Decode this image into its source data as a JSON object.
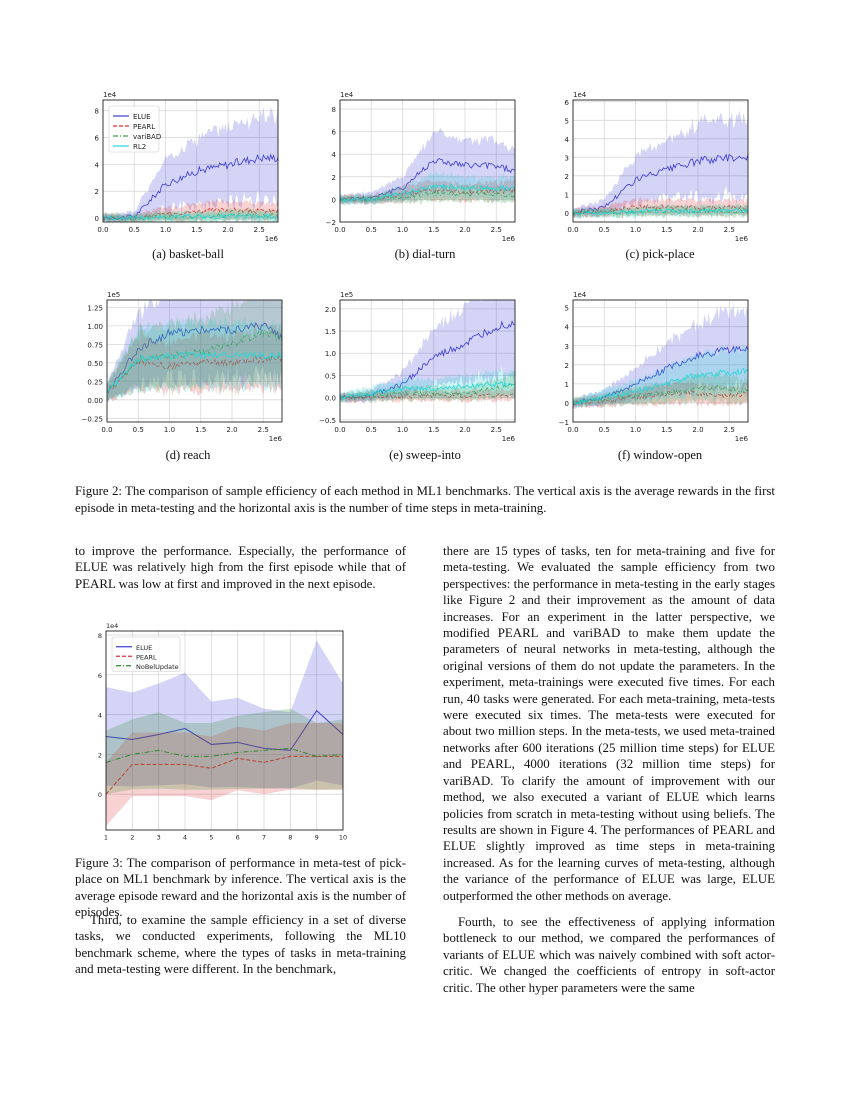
{
  "figure2": {
    "subplots": [
      {
        "id": "a",
        "caption": "(a) basket-ball",
        "scale_label": "1e4",
        "x_label": "1e6",
        "yticks": [
          "0",
          "2",
          "4",
          "6",
          "8"
        ],
        "xticks": [
          "0.0",
          "0.5",
          "1.0",
          "1.5",
          "2.0",
          "2.5"
        ],
        "legend": [
          "ELUE",
          "PEARL",
          "variBAD",
          "RL2"
        ]
      },
      {
        "id": "b",
        "caption": "(b) dial-turn",
        "scale_label": "1e4",
        "x_label": "1e6",
        "yticks": [
          "−2",
          "0",
          "2",
          "4",
          "6",
          "8"
        ],
        "xticks": [
          "0.0",
          "0.5",
          "1.0",
          "1.5",
          "2.0",
          "2.5"
        ]
      },
      {
        "id": "c",
        "caption": "(c) pick-place",
        "scale_label": "1e4",
        "x_label": "1e6",
        "yticks": [
          "0",
          "1",
          "2",
          "3",
          "4",
          "5",
          "6"
        ],
        "xticks": [
          "0.0",
          "0.5",
          "1.0",
          "1.5",
          "2.0",
          "2.5"
        ]
      },
      {
        "id": "d",
        "caption": "(d) reach",
        "scale_label": "1e5",
        "x_label": "1e6",
        "yticks": [
          "−0.25",
          "0.00",
          "0.25",
          "0.50",
          "0.75",
          "1.00",
          "1.25"
        ],
        "xticks": [
          "0.0",
          "0.5",
          "1.0",
          "1.5",
          "2.0",
          "2.5"
        ]
      },
      {
        "id": "e",
        "caption": "(e) sweep-into",
        "scale_label": "1e5",
        "x_label": "1e6",
        "yticks": [
          "−0.5",
          "0.0",
          "0.5",
          "1.0",
          "1.5",
          "2.0"
        ],
        "xticks": [
          "0.0",
          "0.5",
          "1.0",
          "1.5",
          "2.0",
          "2.5"
        ]
      },
      {
        "id": "f",
        "caption": "(f) window-open",
        "scale_label": "1e4",
        "x_label": "1e6",
        "yticks": [
          "−1",
          "0",
          "1",
          "2",
          "3",
          "4",
          "5"
        ],
        "xticks": [
          "0.0",
          "0.5",
          "1.0",
          "1.5",
          "2.0",
          "2.5"
        ]
      }
    ],
    "caption": "Figure 2: The comparison of sample efficiency of each method in ML1 benchmarks. The vertical axis is the average rewards in the first episode in meta-testing and the horizontal axis is the number of time steps in meta-training."
  },
  "chart_data": [
    {
      "type": "line",
      "x": [
        0,
        0.5,
        1.0,
        1.5,
        2.0,
        2.5,
        2.8
      ],
      "xlim": [
        0,
        2.8
      ],
      "ylim": [
        -0.3,
        8.8
      ],
      "series": [
        {
          "name": "ELUE",
          "values": [
            0,
            0.1,
            2.5,
            3.5,
            4.0,
            4.5,
            4.5
          ]
        },
        {
          "name": "PEARL",
          "values": [
            0,
            0,
            0.3,
            0.5,
            0.6,
            0.5,
            0.5
          ]
        },
        {
          "name": "variBAD",
          "values": [
            0,
            0,
            0.1,
            0.1,
            0.2,
            0.2,
            0.2
          ]
        },
        {
          "name": "RL2",
          "values": [
            0,
            0,
            0.05,
            0.1,
            0.1,
            0.1,
            0.1
          ]
        }
      ]
    },
    {
      "type": "line",
      "x": [
        0,
        0.5,
        1.0,
        1.5,
        2.0,
        2.5,
        2.8
      ],
      "xlim": [
        0,
        2.8
      ],
      "ylim": [
        -2,
        8.8
      ],
      "series": [
        {
          "name": "ELUE",
          "values": [
            0,
            0.2,
            1.0,
            3.5,
            3.0,
            3.0,
            2.5
          ]
        },
        {
          "name": "PEARL",
          "values": [
            0,
            0,
            0.5,
            0.8,
            0.6,
            0.7,
            0.8
          ]
        },
        {
          "name": "variBAD",
          "values": [
            0,
            0,
            0.2,
            0.5,
            0.5,
            0.5,
            0.3
          ]
        },
        {
          "name": "RL2",
          "values": [
            0,
            0,
            0.5,
            1.2,
            1.0,
            1.0,
            1.0
          ]
        }
      ]
    },
    {
      "type": "line",
      "x": [
        0,
        0.5,
        1.0,
        1.5,
        2.0,
        2.5,
        2.8
      ],
      "xlim": [
        0,
        2.8
      ],
      "ylim": [
        -0.5,
        6.1
      ],
      "series": [
        {
          "name": "ELUE",
          "values": [
            0,
            0.3,
            1.8,
            2.3,
            2.8,
            3.0,
            3.0
          ]
        },
        {
          "name": "PEARL",
          "values": [
            0,
            0.1,
            0.3,
            0.3,
            0.3,
            0.3,
            0.3
          ]
        },
        {
          "name": "variBAD",
          "values": [
            0,
            0,
            0.05,
            0.1,
            0.1,
            0.1,
            0.1
          ]
        },
        {
          "name": "RL2",
          "values": [
            0,
            0,
            0.05,
            0.1,
            0.1,
            0.1,
            0.1
          ]
        }
      ]
    },
    {
      "type": "line",
      "x": [
        0,
        0.5,
        1.0,
        1.5,
        2.0,
        2.5,
        2.8
      ],
      "xlim": [
        0,
        2.8
      ],
      "ylim": [
        -0.3,
        1.35
      ],
      "series": [
        {
          "name": "ELUE",
          "values": [
            0.1,
            0.7,
            0.9,
            0.95,
            0.95,
            1.0,
            0.85
          ]
        },
        {
          "name": "PEARL",
          "values": [
            0.1,
            0.5,
            0.45,
            0.5,
            0.5,
            0.55,
            0.55
          ]
        },
        {
          "name": "variBAD",
          "values": [
            0.1,
            0.55,
            0.6,
            0.65,
            0.75,
            0.9,
            0.85
          ]
        },
        {
          "name": "RL2",
          "values": [
            0.1,
            0.55,
            0.6,
            0.6,
            0.6,
            0.6,
            0.6
          ]
        }
      ]
    },
    {
      "type": "line",
      "x": [
        0,
        0.5,
        1.0,
        1.5,
        2.0,
        2.5,
        2.8
      ],
      "xlim": [
        0,
        2.8
      ],
      "ylim": [
        -0.55,
        2.2
      ],
      "series": [
        {
          "name": "ELUE",
          "values": [
            0,
            0.05,
            0.3,
            0.9,
            1.2,
            1.6,
            1.7
          ]
        },
        {
          "name": "PEARL",
          "values": [
            0,
            0,
            0.02,
            0.05,
            0.05,
            0.05,
            0.05
          ]
        },
        {
          "name": "variBAD",
          "values": [
            0,
            0.05,
            0.1,
            0.1,
            0.1,
            0.2,
            0.3
          ]
        },
        {
          "name": "RL2",
          "values": [
            0,
            0.1,
            0.2,
            0.2,
            0.25,
            0.3,
            0.3
          ]
        }
      ]
    },
    {
      "type": "line",
      "x": [
        0,
        0.5,
        1.0,
        1.5,
        2.0,
        2.5,
        2.8
      ],
      "xlim": [
        0,
        2.8
      ],
      "ylim": [
        -1,
        5.4
      ],
      "series": [
        {
          "name": "ELUE",
          "values": [
            0,
            0.3,
            1.0,
            1.8,
            2.5,
            2.8,
            2.8
          ]
        },
        {
          "name": "PEARL",
          "values": [
            0,
            0.1,
            0.3,
            0.5,
            0.5,
            0.4,
            0.5
          ]
        },
        {
          "name": "variBAD",
          "values": [
            0,
            0.2,
            0.4,
            0.5,
            0.8,
            0.8,
            0.6
          ]
        },
        {
          "name": "RL2",
          "values": [
            0,
            0.3,
            0.6,
            1.0,
            1.5,
            1.6,
            1.7
          ]
        }
      ]
    },
    {
      "type": "line",
      "x": [
        1,
        2,
        3,
        4,
        5,
        6,
        7,
        8,
        9,
        10
      ],
      "xlim": [
        1,
        10
      ],
      "ylim": [
        -1.8,
        8.2
      ],
      "yticks": [
        "0",
        "2",
        "4",
        "6",
        "8"
      ],
      "xticks": [
        "1",
        "2",
        "3",
        "4",
        "5",
        "6",
        "7",
        "8",
        "9",
        "10"
      ],
      "scale_label": "1e4",
      "series": [
        {
          "name": "ELUE",
          "values": [
            2.9,
            2.75,
            3.0,
            3.3,
            2.5,
            2.6,
            2.3,
            2.2,
            4.2,
            3.0
          ]
        },
        {
          "name": "PEARL",
          "values": [
            0,
            1.5,
            1.5,
            1.5,
            1.3,
            1.8,
            1.6,
            1.9,
            1.9,
            1.9
          ]
        },
        {
          "name": "NoBeliefUpdate",
          "values": [
            1.6,
            2.0,
            2.2,
            1.9,
            1.9,
            2.1,
            2.2,
            2.3,
            1.9,
            2.0
          ]
        }
      ]
    }
  ],
  "figure3": {
    "legend": [
      "ELUE",
      "PEARL",
      "NoBelUpdate"
    ],
    "caption": "Figure 3: The comparison of performance in meta-test of pick-place on ML1 benchmark by inference. The vertical axis is the average episode reward and the horizontal axis is the number of episodes."
  },
  "left_col": {
    "p1": "to improve the performance. Especially, the performance of ELUE was relatively high from the first episode while that of PEARL was low at first and improved in the next episode.",
    "p2": "Third, to examine the sample efficiency in a set of diverse tasks, we conducted experiments, following the ML10 benchmark scheme, where the types of tasks in meta-training and meta-testing were different. In the benchmark,"
  },
  "right_col": {
    "p1": "there are 15 types of tasks, ten for meta-training and five for meta-testing. We evaluated the sample efficiency from two perspectives: the performance in meta-testing in the early stages like Figure 2 and their improvement as the amount of data increases. For an experiment in the latter perspective, we modified PEARL and variBAD to make them update the parameters of neural networks in meta-testing, although the original versions of them do not update the parameters. In the experiment, meta-trainings were executed five times. For each run, 40 tasks were generated. For each meta-training, meta-tests were executed six times. The meta-tests were executed for about two million steps. In the meta-tests, we used meta-trained networks after 600 iterations (25 million time steps) for ELUE and PEARL, 4000 iterations (32 million time steps) for variBAD. To clarify the amount of improvement with our method, we also executed a variant of ELUE which learns policies from scratch in meta-testing without using beliefs. The results are shown in Figure 4. The performances of PEARL and ELUE slightly improved as time steps in meta-training increased. As for the learning curves of meta-testing, although the variance of the performance of ELUE was large, ELUE outperformed the other methods on average.",
    "p2": "Fourth, to see the effectiveness of applying information bottleneck to our method, we compared the performances of variants of ELUE which was naively combined with soft actor-critic. We changed the coefficients of entropy in soft-actor critic. The other hyper parameters were the same"
  },
  "colors": {
    "ELUE": "#3b3bd6",
    "PEARL": "#e03030",
    "variBAD": "#4a9a4a",
    "RL2": "#22d8d8",
    "NoBeliefUpdate": "#2a8a2a"
  }
}
